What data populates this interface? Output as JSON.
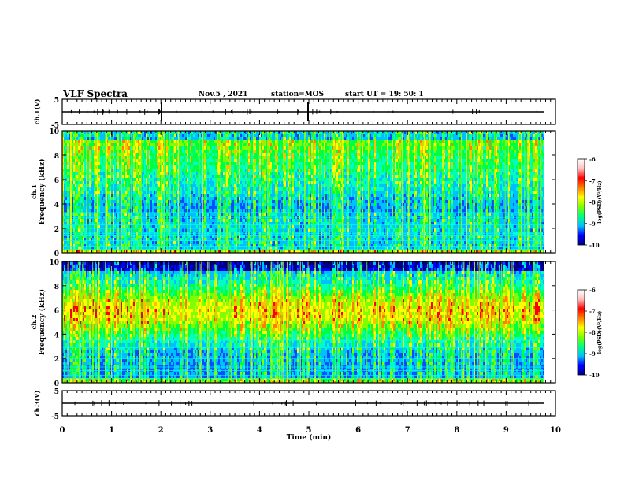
{
  "header": {
    "title": "VLF Spectra",
    "date": "Nov.5 , 2021",
    "station": "station=MOS",
    "start_ut": "start UT = 19: 50: 1"
  },
  "chart_data": [
    {
      "type": "line",
      "panel": "ch1_waveform",
      "ylabel": "ch.1(V)",
      "ylim": [
        -5,
        5
      ],
      "yticks": [
        "5",
        "-5"
      ],
      "trace_level": 0,
      "grid": false
    },
    {
      "type": "heatmap",
      "panel": "ch1_spectrogram",
      "ylabel": "ch.1\nFrequency (kHz)",
      "ylim": [
        0,
        10
      ],
      "yticks": [
        "10",
        "8",
        "6",
        "4",
        "2",
        "0"
      ],
      "xlim": [
        0,
        10
      ],
      "colorbar": {
        "label": "log(PSD)(V²/Hz)",
        "range": [
          -10,
          -6
        ],
        "ticks": [
          "-6",
          "-7",
          "-8",
          "-9",
          "-10"
        ],
        "colors": [
          "#00007f",
          "#0000ff",
          "#00bfff",
          "#00ff7f",
          "#7fff00",
          "#ffff00",
          "#ff7f00",
          "#ff0000",
          "#ffbfbf",
          "#ffffff"
        ]
      },
      "persistent_lines_khz": [
        0.3,
        0.55,
        0.8,
        1.0,
        1.4,
        1.6,
        2.0,
        2.3,
        2.9,
        3.3
      ],
      "grid": false
    },
    {
      "type": "heatmap",
      "panel": "ch2_spectrogram",
      "ylabel": "ch.2\nFrequency (kHz)",
      "ylim": [
        0,
        10
      ],
      "yticks": [
        "10",
        "8",
        "6",
        "4",
        "2",
        "0"
      ],
      "xlim": [
        0,
        10
      ],
      "colorbar": {
        "label": "log(PSD)(V²/Hz)",
        "range": [
          -10,
          -6
        ],
        "ticks": [
          "-6",
          "-7",
          "-8",
          "-9",
          "-10"
        ],
        "colors": [
          "#00007f",
          "#0000ff",
          "#00bfff",
          "#00ff7f",
          "#7fff00",
          "#ffff00",
          "#ff7f00",
          "#ff0000",
          "#ffbfbf",
          "#ffffff"
        ]
      },
      "persistent_lines_khz": [
        0.35,
        0.6,
        1.0,
        1.3,
        2.0,
        2.9,
        3.5
      ],
      "grid": false
    },
    {
      "type": "line",
      "panel": "ch3_waveform",
      "ylabel": "ch.3(V)",
      "ylim": [
        -5,
        5
      ],
      "yticks": [
        "5",
        "-5"
      ],
      "xlabel": "Time (min)",
      "xlim": [
        0,
        10
      ],
      "xticks": [
        "0",
        "1",
        "2",
        "3",
        "4",
        "5",
        "6",
        "7",
        "8",
        "9",
        "10"
      ],
      "trace_level": 0,
      "grid": false
    }
  ]
}
